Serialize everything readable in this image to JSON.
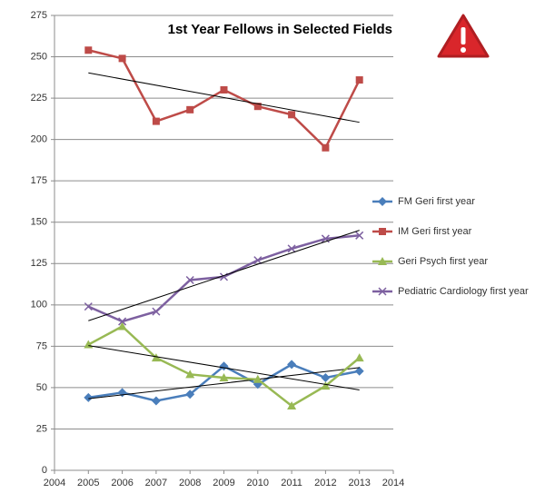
{
  "chart_data": {
    "type": "line",
    "title": "1st Year Fellows in Selected Fields",
    "x": [
      2005,
      2006,
      2007,
      2008,
      2009,
      2010,
      2011,
      2012,
      2013
    ],
    "series": [
      {
        "name": "FM Geri first year",
        "color": "#4a7ebb",
        "marker": "diamond",
        "trendline": true,
        "values": [
          44,
          47,
          42,
          46,
          63,
          52,
          64,
          56,
          60
        ]
      },
      {
        "name": "IM Geri first year",
        "color": "#be4b48",
        "marker": "square",
        "trendline": true,
        "values": [
          254,
          249,
          211,
          218,
          230,
          220,
          215,
          195,
          236
        ]
      },
      {
        "name": "Geri Psych first year",
        "color": "#98b954",
        "marker": "triangle",
        "trendline": true,
        "values": [
          76,
          87,
          68,
          58,
          56,
          55,
          39,
          51,
          68
        ]
      },
      {
        "name": "Pediatric Cardiology first year",
        "color": "#7d60a0",
        "marker": "x",
        "trendline": true,
        "values": [
          99,
          90,
          96,
          115,
          117,
          127,
          134,
          140,
          142
        ]
      }
    ],
    "xlim": [
      2004,
      2014
    ],
    "xticks": [
      2004,
      2005,
      2006,
      2007,
      2008,
      2009,
      2010,
      2011,
      2012,
      2013,
      2014
    ],
    "ylim": [
      0,
      275
    ],
    "yticks": [
      0,
      25,
      50,
      75,
      100,
      125,
      150,
      175,
      200,
      225,
      250,
      275
    ],
    "grid": true,
    "legend": "right"
  }
}
